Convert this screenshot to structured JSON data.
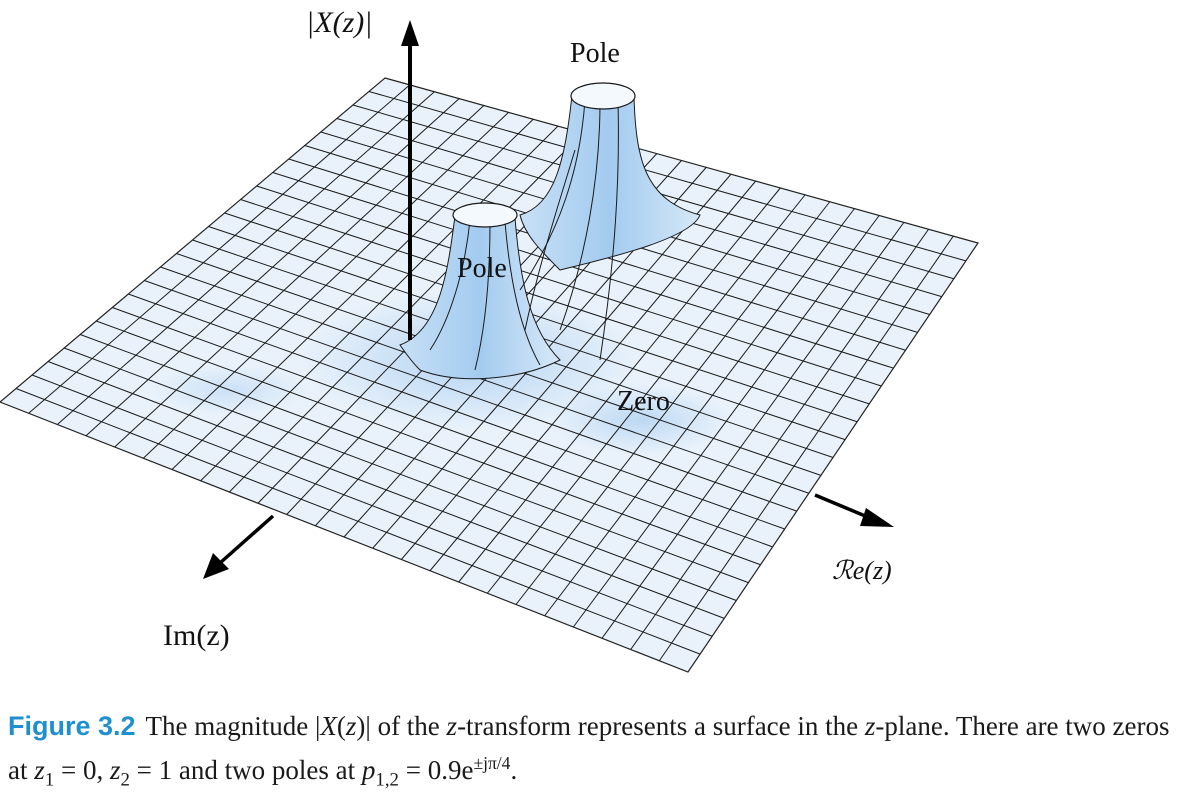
{
  "figure": {
    "axis_labels": {
      "magnitude": "|X(z)|",
      "real": "ℛe(z)",
      "imag": "Im(z)"
    },
    "annotations": {
      "pole_top": "Pole",
      "pole_front": "Pole",
      "zero": "Zero"
    },
    "colors": {
      "surface": "#e8f1fb",
      "peak": "#a9cdef",
      "mesh": "#1a1a1a"
    }
  },
  "caption": {
    "label": "Figure 3.2",
    "t1": "The magnitude |",
    "X": "X",
    "z_a": "z",
    "t2": ")| of the ",
    "z_b": "z",
    "t3": "-transform represents a surface in the ",
    "z_c": "z",
    "t4": "-plane. There are two zeros at ",
    "z1": "z",
    "z1_sub": "1",
    "t5": " = 0, ",
    "z2": "z",
    "z2_sub": "2",
    "t6": " = 1 and two poles at ",
    "p": "p",
    "p_sub": "1,2",
    "t7": " = 0.9e",
    "p_sup": "±jπ/4",
    "t8": "."
  }
}
